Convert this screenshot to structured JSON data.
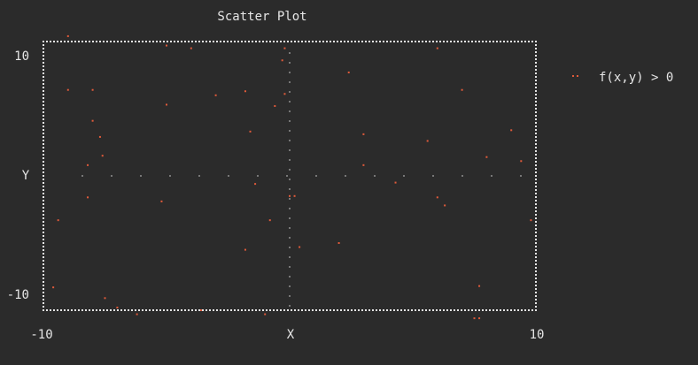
{
  "chart_data": {
    "type": "scatter",
    "title": "Scatter Plot",
    "xlabel": "X",
    "ylabel": "Y",
    "xlim": [
      -10,
      10
    ],
    "ylim": [
      -10,
      10
    ],
    "x_ticks": [
      "-10",
      "10"
    ],
    "y_ticks": [
      "10",
      "-10"
    ],
    "grid": false,
    "axes_cross_at_origin": true,
    "legend_position": "right",
    "point_color": "#e05a3a",
    "border_color": "#e6e6e6",
    "axis_color": "#777777",
    "series": [
      {
        "name": "f(x,y) > 0",
        "points": [
          [
            -9.0,
            10.4
          ],
          [
            -9.4,
            -3.3
          ],
          [
            -9.6,
            -8.3
          ],
          [
            -9.0,
            6.4
          ],
          [
            -8.0,
            6.4
          ],
          [
            -8.0,
            4.1
          ],
          [
            -7.7,
            2.9
          ],
          [
            -8.2,
            0.8
          ],
          [
            -7.6,
            1.5
          ],
          [
            -8.2,
            -1.6
          ],
          [
            -7.5,
            -9.1
          ],
          [
            -7.0,
            -9.8
          ],
          [
            -6.2,
            -10.3
          ],
          [
            -5.2,
            -1.9
          ],
          [
            -5.0,
            9.7
          ],
          [
            -5.0,
            5.3
          ],
          [
            -4.0,
            9.5
          ],
          [
            -3.0,
            6.0
          ],
          [
            -3.6,
            -10.0
          ],
          [
            -1.8,
            6.3
          ],
          [
            -1.6,
            3.3
          ],
          [
            -1.4,
            -0.6
          ],
          [
            -1.8,
            -5.5
          ],
          [
            -1.0,
            -10.3
          ],
          [
            -0.8,
            -3.3
          ],
          [
            -0.6,
            5.2
          ],
          [
            -0.2,
            6.1
          ],
          [
            -0.2,
            9.5
          ],
          [
            -0.3,
            8.6
          ],
          [
            0.0,
            -1.5
          ],
          [
            0.2,
            -1.5
          ],
          [
            0.4,
            -5.3
          ],
          [
            2.4,
            7.7
          ],
          [
            2.0,
            -5.0
          ],
          [
            3.0,
            3.1
          ],
          [
            3.0,
            0.8
          ],
          [
            4.3,
            -0.5
          ],
          [
            5.6,
            2.6
          ],
          [
            6.0,
            -1.6
          ],
          [
            6.3,
            -2.2
          ],
          [
            6.0,
            9.5
          ],
          [
            7.0,
            6.4
          ],
          [
            7.7,
            -8.2
          ],
          [
            7.7,
            -10.6
          ],
          [
            7.5,
            -10.6
          ],
          [
            8.0,
            1.4
          ],
          [
            9.0,
            3.4
          ],
          [
            9.4,
            1.1
          ],
          [
            9.8,
            -3.3
          ]
        ]
      }
    ]
  }
}
